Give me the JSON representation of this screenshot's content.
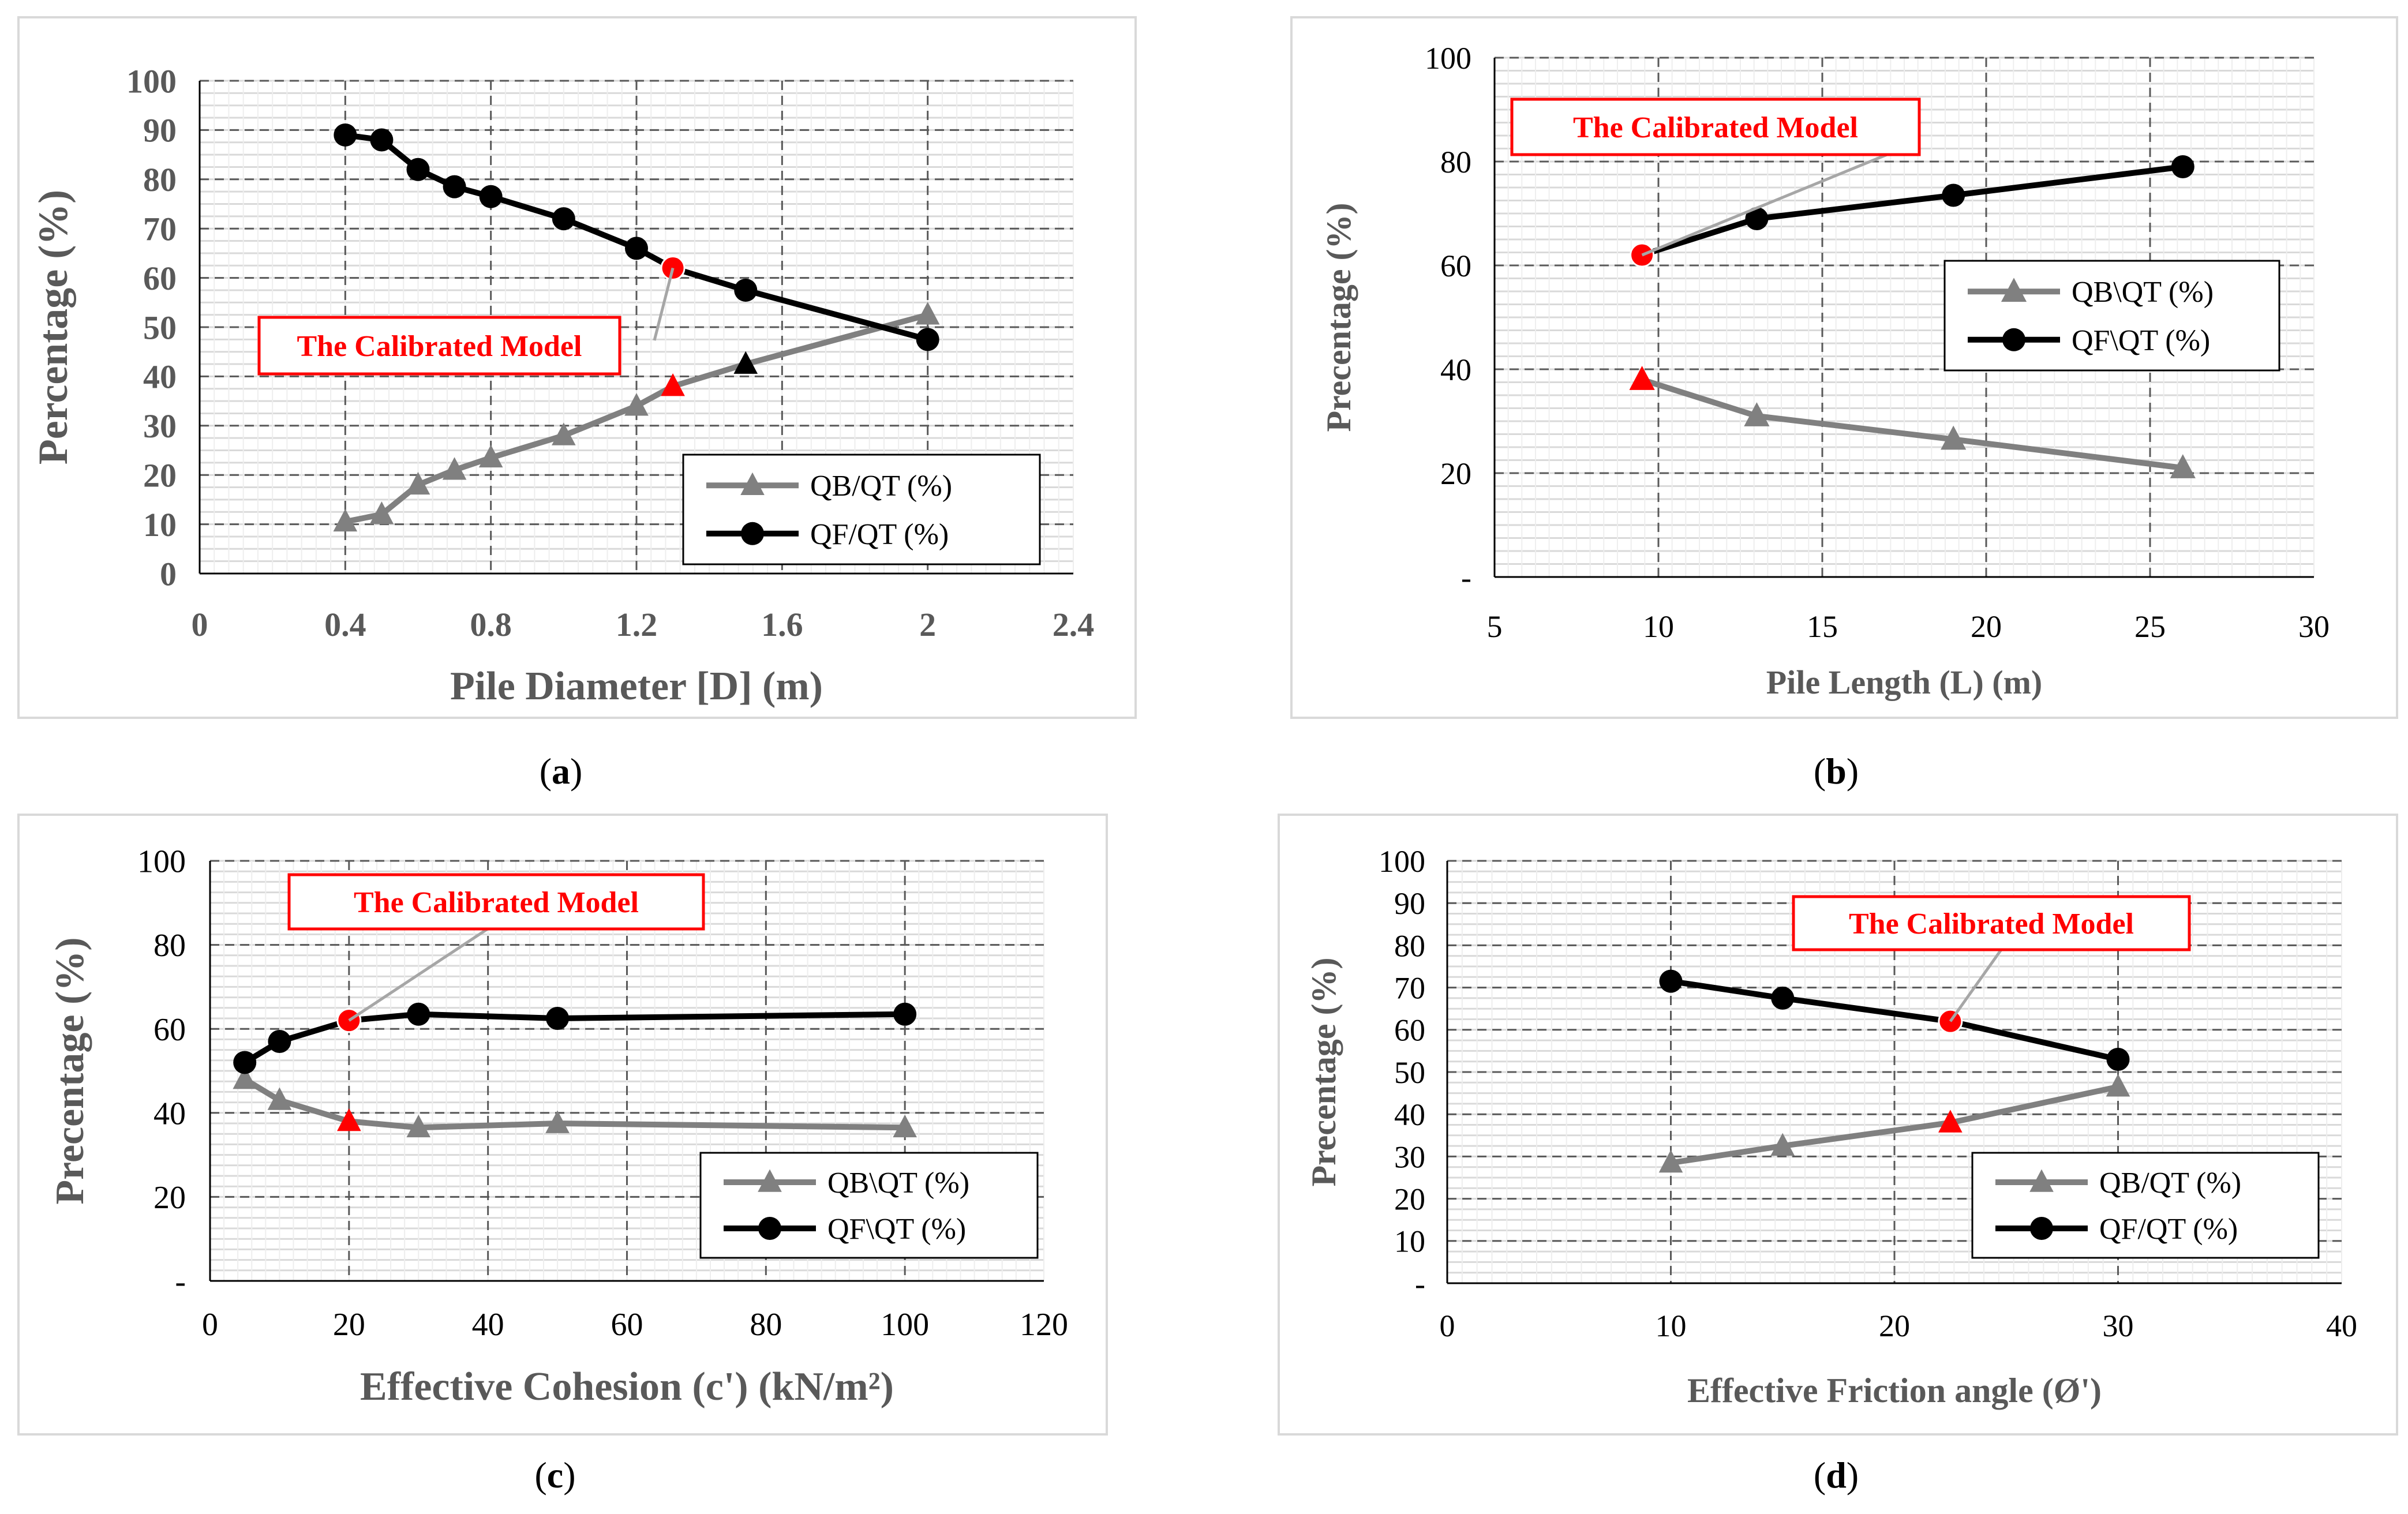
{
  "colors": {
    "qb": "#808080",
    "qf": "#000000",
    "highlight": "#ff0000",
    "grid": "#d9d9d9",
    "dash": "#595959"
  },
  "panels": [
    {
      "caption_open": "(",
      "caption_letter": "a",
      "caption_close": ")"
    },
    {
      "caption_open": "(",
      "caption_letter": "b",
      "caption_close": ")"
    },
    {
      "caption_open": "(",
      "caption_letter": "c",
      "caption_close": ")"
    },
    {
      "caption_open": "(",
      "caption_letter": "d",
      "caption_close": ")"
    }
  ],
  "chart_data": [
    {
      "type": "line",
      "xlabel": "Pile Diameter [D] (m)",
      "ylabel": "Percentage (%)",
      "xlim": [
        0,
        2.4
      ],
      "ylim": [
        0,
        100
      ],
      "xticks": [
        0,
        0.4,
        0.8,
        1.2,
        1.6,
        2,
        2.4
      ],
      "xtick_labels": [
        "0",
        "0.4",
        "0.8",
        "1.2",
        "1.6",
        "2",
        "2.4"
      ],
      "yticks": [
        0,
        10,
        20,
        30,
        40,
        50,
        60,
        70,
        80,
        90,
        100
      ],
      "ytick_labels": [
        "0",
        "10",
        "20",
        "30",
        "40",
        "50",
        "60",
        "70",
        "80",
        "90",
        "100"
      ],
      "dashed_x": [
        0.4,
        0.8,
        1.2,
        1.6,
        2.0
      ],
      "series": [
        {
          "name": "QB/QT (%)",
          "marker": "triangle",
          "x": [
            0.4,
            0.5,
            0.6,
            0.7,
            0.8,
            1.0,
            1.2,
            1.3,
            1.5,
            2.0
          ],
          "values": [
            10.5,
            12,
            18,
            21,
            23.5,
            28,
            34,
            38,
            42.5,
            52.5
          ]
        },
        {
          "name": "QF/QT (%)",
          "marker": "circle",
          "x": [
            0.4,
            0.5,
            0.6,
            0.7,
            0.8,
            1.0,
            1.2,
            1.3,
            1.5,
            2.0
          ],
          "values": [
            89,
            88,
            82,
            78.5,
            76.5,
            72,
            66,
            62,
            57.5,
            47.5
          ]
        }
      ],
      "highlight_x": 1.3,
      "annotation": "The Calibrated Model"
    },
    {
      "type": "line",
      "xlabel": "Pile Length (L) (m)",
      "ylabel": "Precentage (%)",
      "xlim": [
        5,
        30
      ],
      "ylim": [
        0,
        100
      ],
      "xticks": [
        5,
        10,
        15,
        20,
        25,
        30
      ],
      "xtick_labels": [
        "5",
        "10",
        "15",
        "20",
        "25",
        "30"
      ],
      "yticks": [
        0,
        20,
        40,
        60,
        80,
        100
      ],
      "ytick_labels": [
        "-",
        "20",
        "40",
        "60",
        "80",
        "100"
      ],
      "dashed_x": [
        10,
        15,
        20,
        25
      ],
      "series": [
        {
          "name": "QB\\QT (%)",
          "marker": "triangle",
          "x": [
            9.5,
            13,
            19,
            26
          ],
          "values": [
            38,
            31,
            26.5,
            21
          ]
        },
        {
          "name": "QF\\QT (%)",
          "marker": "circle",
          "x": [
            9.5,
            13,
            19,
            26
          ],
          "values": [
            62,
            69,
            73.5,
            79
          ]
        }
      ],
      "highlight_x": 9.5,
      "annotation": "The Calibrated Model"
    },
    {
      "type": "line",
      "xlabel": "Effective Cohesion (c') (kN/m²)",
      "ylabel": "Precentage (%)",
      "xlim": [
        0,
        120
      ],
      "ylim": [
        0,
        100
      ],
      "xticks": [
        0,
        20,
        40,
        60,
        80,
        100,
        120
      ],
      "xtick_labels": [
        "0",
        "20",
        "40",
        "60",
        "80",
        "100",
        "120"
      ],
      "yticks": [
        0,
        20,
        40,
        60,
        80,
        100
      ],
      "ytick_labels": [
        "-",
        "20",
        "40",
        "60",
        "80",
        "100"
      ],
      "dashed_x": [
        20,
        40,
        60,
        80,
        100
      ],
      "series": [
        {
          "name": "QB\\QT (%)",
          "marker": "triangle",
          "x": [
            5,
            10,
            20,
            30,
            50,
            100
          ],
          "values": [
            48,
            43,
            38,
            36.5,
            37.5,
            36.5
          ]
        },
        {
          "name": "QF\\QT (%)",
          "marker": "circle",
          "x": [
            5,
            10,
            20,
            30,
            50,
            100
          ],
          "values": [
            52,
            57,
            62,
            63.5,
            62.5,
            63.5
          ]
        }
      ],
      "highlight_x": 20,
      "annotation": "The Calibrated Model"
    },
    {
      "type": "line",
      "xlabel": "Effective Friction angle (Ø')",
      "ylabel": "Precentage (%)",
      "xlim": [
        0,
        40
      ],
      "ylim": [
        0,
        100
      ],
      "xticks": [
        0,
        10,
        20,
        30,
        40
      ],
      "xtick_labels": [
        "0",
        "10",
        "20",
        "30",
        "40"
      ],
      "yticks": [
        0,
        10,
        20,
        30,
        40,
        50,
        60,
        70,
        80,
        90,
        100
      ],
      "ytick_labels": [
        "-",
        "10",
        "20",
        "30",
        "40",
        "50",
        "60",
        "70",
        "80",
        "90",
        "100"
      ],
      "dashed_x": [
        10,
        20,
        30
      ],
      "series": [
        {
          "name": "QB/QT (%)",
          "marker": "triangle",
          "x": [
            10,
            15,
            22.5,
            30
          ],
          "values": [
            28.5,
            32.5,
            38,
            46.5
          ]
        },
        {
          "name": "QF/QT (%)",
          "marker": "circle",
          "x": [
            10,
            15,
            22.5,
            30
          ],
          "values": [
            71.5,
            67.5,
            62,
            53
          ]
        }
      ],
      "highlight_x": 22.5,
      "annotation": "The Calibrated Model"
    }
  ]
}
